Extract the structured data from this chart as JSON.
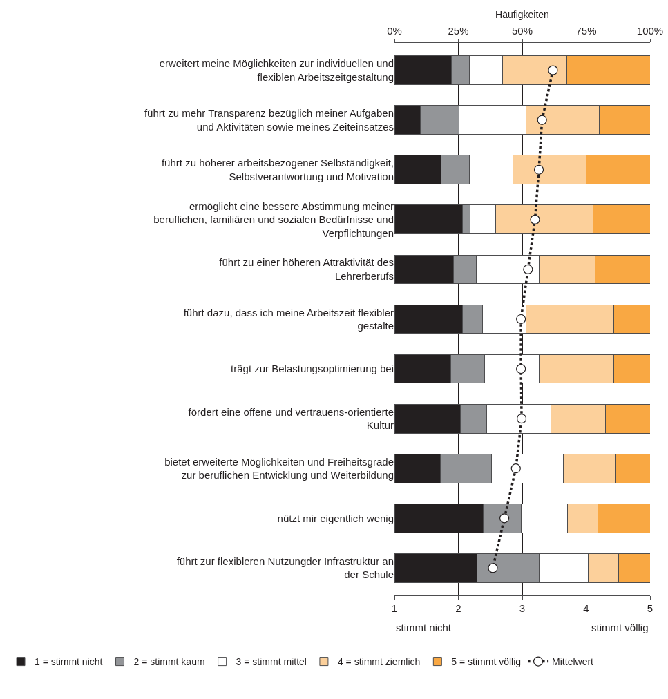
{
  "chart_data": {
    "type": "bar",
    "orientation": "horizontal",
    "stacked": true,
    "xlabel": "Häufigkeiten",
    "categories": [
      "erweitert meine Möglichkeiten zur individuellen und flexiblen Arbeitszeitgestaltung",
      "führt zu mehr Transparenz bezüglich meiner Aufgaben und Aktivitäten sowie meines Zeiteinsatzes",
      "führt zu höherer arbeitsbezogener Selbständigkeit, Selbstverantwortung und Motivation",
      "ermöglicht eine bessere Abstimmung meiner beruflichen, familiären und sozialen Bedürfnisse und Verpflichtungen",
      "führt zu einer höheren Attraktivität des Lehrerberufs",
      "führt dazu, dass ich meine Arbeitszeit flexibler gestalte",
      "trägt zur Belastungsoptimierung bei",
      "fördert eine offene und vertrauens-orientierte Kultur",
      "bietet erweiterte Möglichkeiten und Freiheitsgrade zur beruflichen Entwicklung und Weiterbildung",
      "nützt mir eigentlich wenig",
      "führt zur flexibleren Nutzungder Infrastruktur an der Schule"
    ],
    "series": [
      {
        "name": "1 = stimmt nicht",
        "color": "#231f20",
        "values": [
          22.2,
          10.1,
          18.3,
          26.7,
          23.0,
          26.5,
          22.0,
          25.9,
          18.0,
          34.7,
          32.3
        ]
      },
      {
        "name": "2 = stimmt kaum",
        "color": "#939598",
        "values": [
          7.2,
          15.1,
          11.1,
          3.0,
          9.0,
          7.9,
          13.2,
          10.1,
          20.1,
          14.8,
          24.4
        ]
      },
      {
        "name": "3 = stimmt mittel",
        "color": "#ffffff",
        "values": [
          13.0,
          26.2,
          16.9,
          10.0,
          24.7,
          17.2,
          21.5,
          25.2,
          28.1,
          18.3,
          19.0
        ]
      },
      {
        "name": "4 = stimmt ziemlich",
        "color": "#fcd09b",
        "values": [
          24.9,
          28.8,
          28.6,
          37.9,
          21.9,
          34.2,
          29.1,
          21.4,
          20.4,
          11.9,
          11.9
        ]
      },
      {
        "name": "5 = stimmt völlig",
        "color": "#f9a843",
        "values": [
          32.7,
          19.8,
          25.1,
          22.4,
          21.4,
          14.2,
          14.2,
          17.4,
          13.4,
          20.3,
          12.4
        ]
      },
      {
        "name": "Mittelwert",
        "type": "line",
        "axis": "x2",
        "color": "#231f20",
        "marker": "circle",
        "line_style": "dotted",
        "values": [
          3.48,
          3.31,
          3.26,
          3.2,
          3.09,
          2.98,
          2.98,
          2.99,
          2.9,
          2.72,
          2.54
        ]
      }
    ],
    "xlim": [
      0,
      100
    ],
    "xticks": [
      {
        "value": 0,
        "label": "0%"
      },
      {
        "value": 25,
        "label": "25%"
      },
      {
        "value": 50,
        "label": "50%"
      },
      {
        "value": 75,
        "label": "75%"
      },
      {
        "value": 100,
        "label": "100%"
      }
    ],
    "x2lim": [
      1,
      5
    ],
    "x2ticks": [
      1,
      2,
      3,
      4,
      5
    ],
    "annotations": [
      "stimmt nicht",
      "stimmt völlig"
    ],
    "grid": "x",
    "legend": "bottom"
  }
}
